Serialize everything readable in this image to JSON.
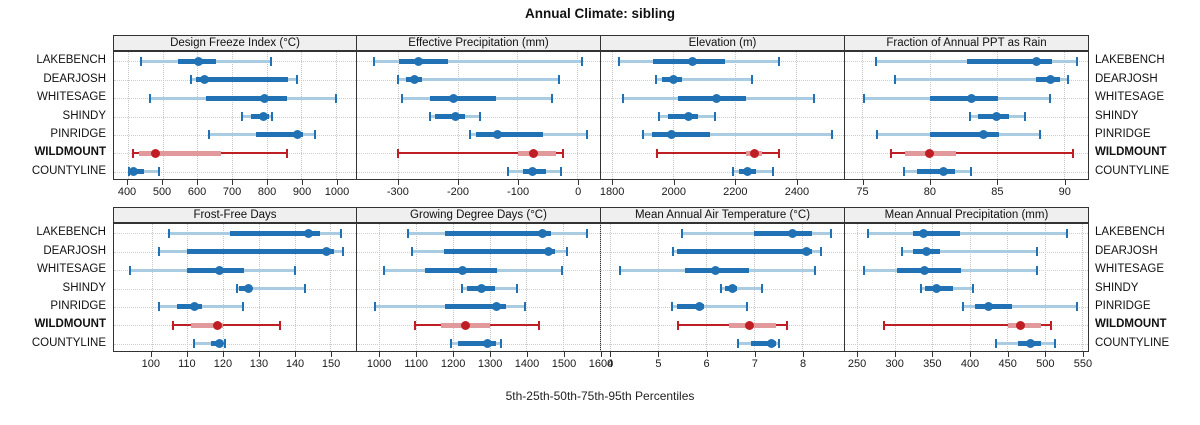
{
  "title": "Annual Climate: sibling",
  "caption": "5th-25th-50th-75th-95th Percentiles",
  "highlight_location": "WILDMOUNT",
  "colors": {
    "blue_dark": "#2171b5",
    "blue_light": "#a9cce2",
    "red_dark": "#c01e25",
    "red_light": "#e2999c",
    "header_bg": "#efefef",
    "grid": "#c6c6c6",
    "border": "#333333"
  },
  "chart_data": {
    "type": "percentile-range (boxplot-like dot-range trellis)",
    "percentile_labels": [
      "5th",
      "25th",
      "50th",
      "75th",
      "95th"
    ],
    "legend_position": "none",
    "grid": "dotted",
    "rows": [
      "LAKEBENCH",
      "DEARJOSH",
      "WHITESAGE",
      "SHINDY",
      "PINRIDGE",
      "WILDMOUNT",
      "COUNTYLINE"
    ],
    "panels": [
      {
        "title": "Design Freeze Index (°C)",
        "ticks": [
          400,
          500,
          600,
          700,
          800,
          900,
          1000
        ],
        "xlim": [
          360,
          1057
        ],
        "series": [
          [
            437,
            543,
            603,
            655,
            812
          ],
          [
            583,
            596,
            620,
            862,
            888
          ],
          [
            463,
            624,
            793,
            858,
            1000
          ],
          [
            728,
            755,
            792,
            806,
            816
          ],
          [
            634,
            770,
            888,
            905,
            940
          ],
          [
            414,
            431,
            480,
            668,
            858
          ],
          [
            404,
            409,
            416,
            446,
            490
          ]
        ]
      },
      {
        "title": "Effective Precipitation (mm)",
        "ticks": [
          -300,
          -200,
          -100,
          0
        ],
        "xlim": [
          -368,
          38
        ],
        "series": [
          [
            -340,
            -298,
            -266,
            -216,
            8
          ],
          [
            -299,
            -286,
            -272,
            -259,
            -30
          ],
          [
            -293,
            -246,
            -207,
            -135,
            -42
          ],
          [
            -246,
            -237,
            -203,
            -188,
            -163
          ],
          [
            -179,
            -170,
            -134,
            -57,
            17
          ],
          [
            -299,
            -99,
            -73,
            -36,
            -24
          ],
          [
            -116,
            -91,
            -74,
            -52,
            -27
          ]
        ]
      },
      {
        "title": "Elevation (m)",
        "ticks": [
          1800,
          2000,
          2200,
          2400
        ],
        "xlim": [
          1764,
          2556
        ],
        "series": [
          [
            1822,
            1933,
            2062,
            2167,
            2345
          ],
          [
            1943,
            1962,
            2001,
            2027,
            2257
          ],
          [
            1836,
            2014,
            2141,
            2238,
            2458
          ],
          [
            1952,
            1982,
            2050,
            2079,
            2134
          ],
          [
            1901,
            1930,
            1995,
            2118,
            2517
          ],
          [
            1946,
            2238,
            2264,
            2290,
            2345
          ],
          [
            2193,
            2215,
            2241,
            2270,
            2326
          ]
        ]
      },
      {
        "title": "Fraction of Annual PPT as Rain",
        "ticks": [
          75,
          80,
          85,
          90
        ],
        "xlim": [
          73.7,
          91.8
        ],
        "series": [
          [
            76.0,
            82.8,
            88.0,
            89.1,
            91.0
          ],
          [
            77.4,
            87.9,
            89.0,
            89.7,
            90.3
          ],
          [
            75.1,
            80.0,
            83.1,
            85.1,
            89.0
          ],
          [
            83.0,
            83.6,
            85.0,
            85.9,
            87.1
          ],
          [
            76.1,
            80.0,
            84.0,
            85.2,
            88.2
          ],
          [
            77.1,
            78.2,
            80.0,
            82.0,
            90.7
          ],
          [
            78.1,
            79.1,
            81.0,
            81.9,
            83.1
          ]
        ]
      },
      {
        "title": "Frost-Free Days",
        "ticks": [
          100,
          110,
          120,
          130,
          140,
          150
        ],
        "xlim": [
          89.5,
          157.2
        ],
        "series": [
          [
            105,
            122,
            144,
            147,
            153
          ],
          [
            102,
            110,
            149,
            151,
            153.5
          ],
          [
            94,
            110,
            119,
            126,
            140
          ],
          [
            124,
            124.5,
            127,
            128,
            143
          ],
          [
            102,
            107,
            112,
            114,
            125.5
          ],
          [
            106,
            111,
            118.5,
            120,
            136
          ],
          [
            112,
            116.5,
            119,
            119.5,
            120.5
          ]
        ]
      },
      {
        "title": "Growing Degree Days (°C)",
        "ticks": [
          1000,
          1100,
          1200,
          1300,
          1400,
          1500,
          1600
        ],
        "xlim": [
          940,
          1600
        ],
        "series": [
          [
            1078,
            1180,
            1443,
            1468,
            1565
          ],
          [
            1089,
            1175,
            1459,
            1478,
            1511
          ],
          [
            1012,
            1125,
            1226,
            1320,
            1498
          ],
          [
            1224,
            1240,
            1278,
            1314,
            1374
          ],
          [
            990,
            1178,
            1320,
            1345,
            1395
          ],
          [
            1098,
            1168,
            1234,
            1300,
            1434
          ],
          [
            1196,
            1215,
            1294,
            1318,
            1331
          ]
        ]
      },
      {
        "title": "Mean Annual Air Temperature (°C)",
        "ticks": [
          4,
          5,
          6,
          7,
          8
        ],
        "xlim": [
          3.81,
          8.87
        ],
        "series": [
          [
            5.5,
            7.0,
            7.8,
            8.2,
            8.6
          ],
          [
            5.3,
            5.4,
            8.08,
            8.2,
            8.4
          ],
          [
            4.2,
            5.55,
            6.2,
            6.9,
            8.27
          ],
          [
            6.3,
            6.4,
            6.55,
            6.65,
            7.17
          ],
          [
            5.28,
            5.4,
            5.86,
            5.95,
            6.86
          ],
          [
            5.41,
            6.48,
            6.9,
            7.45,
            7.69
          ],
          [
            6.67,
            6.94,
            7.35,
            7.45,
            7.52
          ]
        ]
      },
      {
        "title": "Mean Annual Precipitation (mm)",
        "ticks": [
          250,
          300,
          350,
          400,
          450,
          500,
          550
        ],
        "xlim": [
          234,
          558
        ],
        "series": [
          [
            265,
            324,
            338,
            387,
            530
          ],
          [
            310,
            324,
            343,
            360,
            490
          ],
          [
            259,
            303,
            340,
            389,
            490
          ],
          [
            335,
            341,
            356,
            378,
            404
          ],
          [
            391,
            407,
            425,
            456,
            543
          ],
          [
            286,
            451,
            468,
            495,
            509
          ],
          [
            435,
            464,
            481,
            495,
            514
          ]
        ]
      }
    ]
  }
}
